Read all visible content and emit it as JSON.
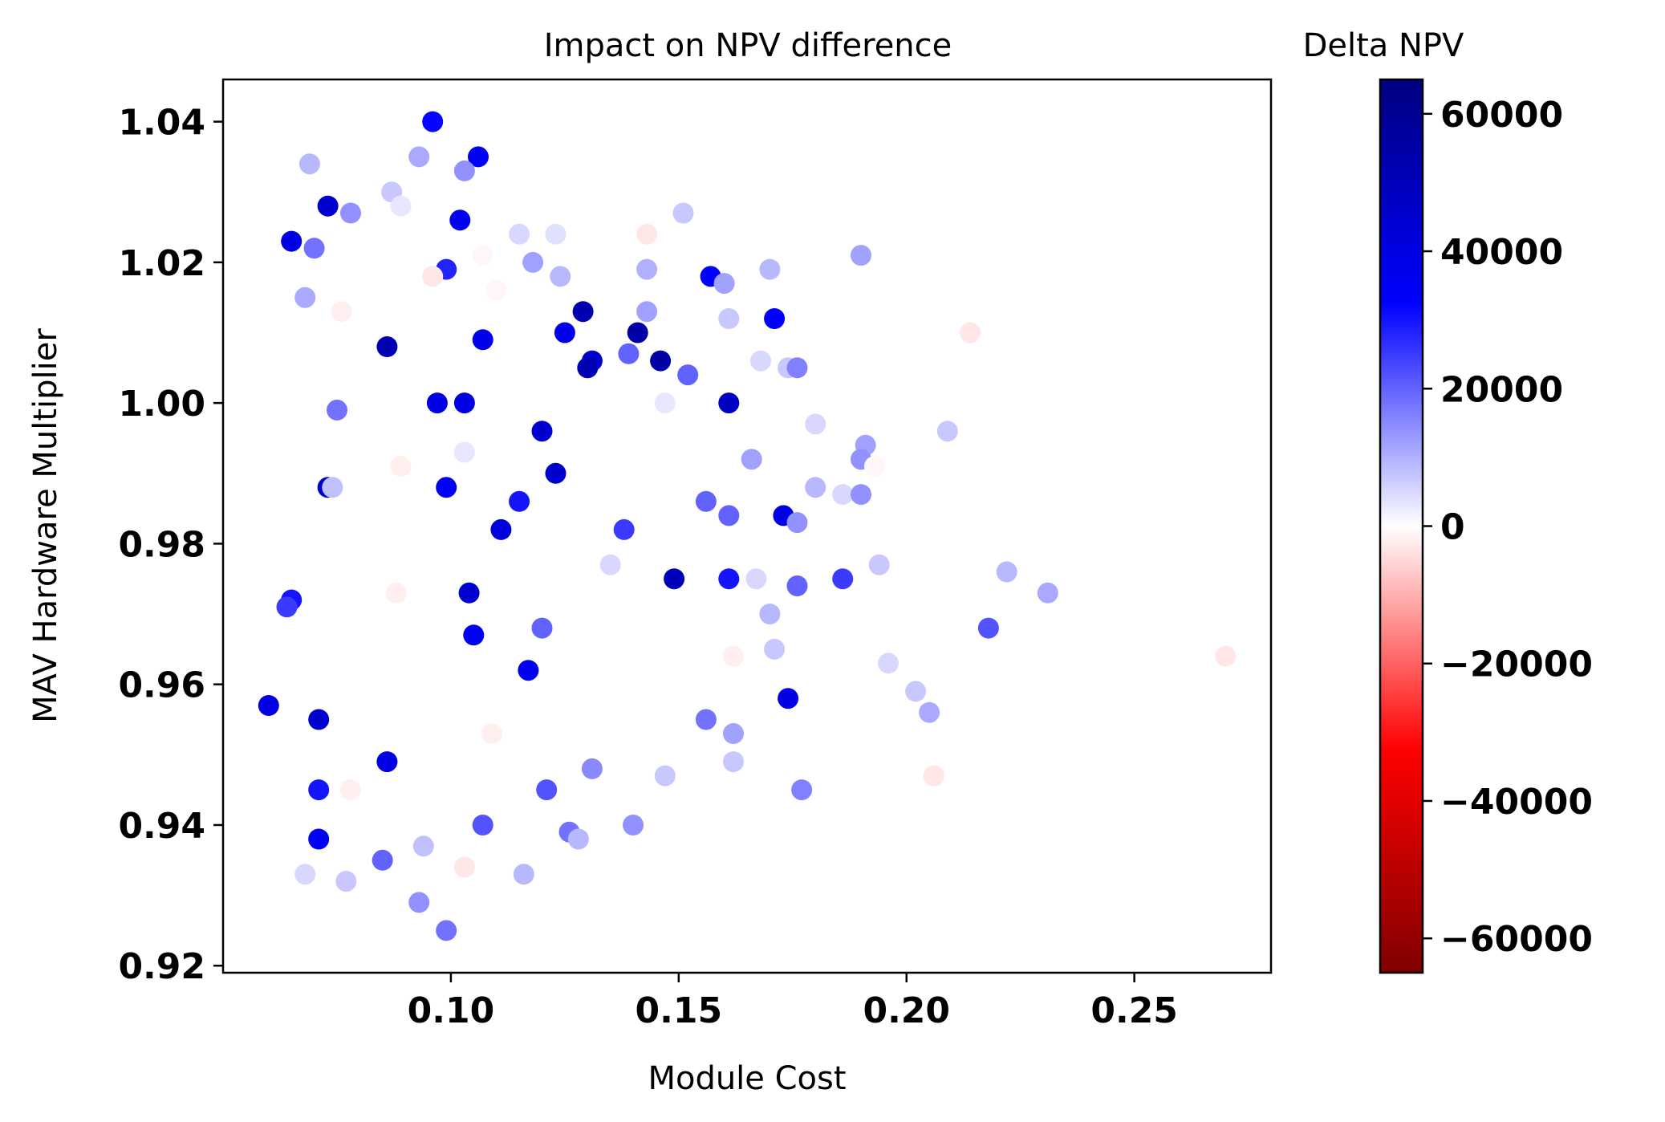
{
  "chart_data": {
    "type": "scatter",
    "title": "Impact on NPV difference",
    "xlabel": "Module Cost",
    "ylabel": "MAV Hardware Multiplier",
    "xlim": [
      0.05,
      0.28
    ],
    "ylim": [
      0.919,
      1.046
    ],
    "xticks": [
      0.1,
      0.15,
      0.2,
      0.25
    ],
    "xtick_labels": [
      "0.10",
      "0.15",
      "0.20",
      "0.25"
    ],
    "yticks": [
      0.92,
      0.94,
      0.96,
      0.98,
      1.0,
      1.02,
      1.04
    ],
    "ytick_labels": [
      "0.92",
      "0.94",
      "0.96",
      "0.98",
      "1.00",
      "1.02",
      "1.04"
    ],
    "grid": false,
    "colorbar": {
      "label": "Delta NPV",
      "colormap": "seismic_r",
      "range": [
        -65000,
        65000
      ],
      "ticks": [
        60000,
        40000,
        20000,
        0,
        -20000,
        -40000,
        -60000
      ],
      "tick_labels": [
        "60000",
        "40000",
        "20000",
        "0",
        "−20000",
        "−40000",
        "−60000"
      ],
      "colors": [
        "#800000",
        "#ff0000",
        "#ffffff",
        "#0000ff",
        "#000080"
      ]
    },
    "points": [
      {
        "x": 0.096,
        "y": 1.04,
        "v": 32000
      },
      {
        "x": 0.069,
        "y": 1.034,
        "v": 9000
      },
      {
        "x": 0.093,
        "y": 1.035,
        "v": 11000
      },
      {
        "x": 0.106,
        "y": 1.035,
        "v": 35000
      },
      {
        "x": 0.103,
        "y": 1.033,
        "v": 14000
      },
      {
        "x": 0.087,
        "y": 1.03,
        "v": 7000
      },
      {
        "x": 0.073,
        "y": 1.028,
        "v": 45000
      },
      {
        "x": 0.078,
        "y": 1.027,
        "v": 14000
      },
      {
        "x": 0.089,
        "y": 1.028,
        "v": 3000
      },
      {
        "x": 0.102,
        "y": 1.026,
        "v": 35000
      },
      {
        "x": 0.151,
        "y": 1.027,
        "v": 7000
      },
      {
        "x": 0.065,
        "y": 1.023,
        "v": 40000
      },
      {
        "x": 0.07,
        "y": 1.022,
        "v": 18000
      },
      {
        "x": 0.143,
        "y": 1.024,
        "v": -3000
      },
      {
        "x": 0.123,
        "y": 1.024,
        "v": 4000
      },
      {
        "x": 0.115,
        "y": 1.024,
        "v": 5000
      },
      {
        "x": 0.107,
        "y": 1.021,
        "v": -1000
      },
      {
        "x": 0.118,
        "y": 1.02,
        "v": 12000
      },
      {
        "x": 0.19,
        "y": 1.021,
        "v": 12000
      },
      {
        "x": 0.099,
        "y": 1.019,
        "v": 28000
      },
      {
        "x": 0.143,
        "y": 1.019,
        "v": 10000
      },
      {
        "x": 0.17,
        "y": 1.019,
        "v": 9000
      },
      {
        "x": 0.157,
        "y": 1.018,
        "v": 33000
      },
      {
        "x": 0.096,
        "y": 1.018,
        "v": -3000
      },
      {
        "x": 0.16,
        "y": 1.017,
        "v": 12000
      },
      {
        "x": 0.11,
        "y": 1.016,
        "v": -1000
      },
      {
        "x": 0.124,
        "y": 1.018,
        "v": 9000
      },
      {
        "x": 0.068,
        "y": 1.015,
        "v": 11000
      },
      {
        "x": 0.076,
        "y": 1.013,
        "v": -2000
      },
      {
        "x": 0.143,
        "y": 1.013,
        "v": 12000
      },
      {
        "x": 0.129,
        "y": 1.013,
        "v": 52000
      },
      {
        "x": 0.171,
        "y": 1.012,
        "v": 33000
      },
      {
        "x": 0.161,
        "y": 1.012,
        "v": 7000
      },
      {
        "x": 0.141,
        "y": 1.01,
        "v": 55000
      },
      {
        "x": 0.125,
        "y": 1.01,
        "v": 38000
      },
      {
        "x": 0.107,
        "y": 1.009,
        "v": 38000
      },
      {
        "x": 0.214,
        "y": 1.01,
        "v": -3000
      },
      {
        "x": 0.086,
        "y": 1.008,
        "v": 52000
      },
      {
        "x": 0.139,
        "y": 1.007,
        "v": 20000
      },
      {
        "x": 0.131,
        "y": 1.006,
        "v": 45000
      },
      {
        "x": 0.13,
        "y": 1.005,
        "v": 52000
      },
      {
        "x": 0.146,
        "y": 1.006,
        "v": 55000
      },
      {
        "x": 0.168,
        "y": 1.006,
        "v": 5000
      },
      {
        "x": 0.174,
        "y": 1.005,
        "v": 7000
      },
      {
        "x": 0.176,
        "y": 1.005,
        "v": 16000
      },
      {
        "x": 0.152,
        "y": 1.004,
        "v": 20000
      },
      {
        "x": 0.161,
        "y": 1.0,
        "v": 48000
      },
      {
        "x": 0.097,
        "y": 1.0,
        "v": 40000
      },
      {
        "x": 0.103,
        "y": 1.0,
        "v": 40000
      },
      {
        "x": 0.075,
        "y": 0.999,
        "v": 18000
      },
      {
        "x": 0.147,
        "y": 1.0,
        "v": 3000
      },
      {
        "x": 0.18,
        "y": 0.997,
        "v": 5000
      },
      {
        "x": 0.209,
        "y": 0.996,
        "v": 7000
      },
      {
        "x": 0.12,
        "y": 0.996,
        "v": 45000
      },
      {
        "x": 0.191,
        "y": 0.994,
        "v": 12000
      },
      {
        "x": 0.19,
        "y": 0.992,
        "v": 14000
      },
      {
        "x": 0.193,
        "y": 0.991,
        "v": -1000
      },
      {
        "x": 0.166,
        "y": 0.992,
        "v": 12000
      },
      {
        "x": 0.18,
        "y": 0.988,
        "v": 9000
      },
      {
        "x": 0.186,
        "y": 0.987,
        "v": 5000
      },
      {
        "x": 0.19,
        "y": 0.987,
        "v": 14000
      },
      {
        "x": 0.123,
        "y": 0.99,
        "v": 45000
      },
      {
        "x": 0.073,
        "y": 0.988,
        "v": 45000
      },
      {
        "x": 0.074,
        "y": 0.988,
        "v": 8000
      },
      {
        "x": 0.099,
        "y": 0.988,
        "v": 35000
      },
      {
        "x": 0.089,
        "y": 0.991,
        "v": -2000
      },
      {
        "x": 0.103,
        "y": 0.993,
        "v": 3000
      },
      {
        "x": 0.115,
        "y": 0.986,
        "v": 30000
      },
      {
        "x": 0.156,
        "y": 0.986,
        "v": 20000
      },
      {
        "x": 0.173,
        "y": 0.984,
        "v": 40000
      },
      {
        "x": 0.176,
        "y": 0.983,
        "v": 14000
      },
      {
        "x": 0.111,
        "y": 0.982,
        "v": 42000
      },
      {
        "x": 0.138,
        "y": 0.982,
        "v": 25000
      },
      {
        "x": 0.161,
        "y": 0.984,
        "v": 20000
      },
      {
        "x": 0.194,
        "y": 0.977,
        "v": 7000
      },
      {
        "x": 0.186,
        "y": 0.975,
        "v": 25000
      },
      {
        "x": 0.222,
        "y": 0.976,
        "v": 9000
      },
      {
        "x": 0.231,
        "y": 0.973,
        "v": 11000
      },
      {
        "x": 0.149,
        "y": 0.975,
        "v": 50000
      },
      {
        "x": 0.161,
        "y": 0.975,
        "v": 30000
      },
      {
        "x": 0.167,
        "y": 0.975,
        "v": 5000
      },
      {
        "x": 0.176,
        "y": 0.974,
        "v": 20000
      },
      {
        "x": 0.135,
        "y": 0.977,
        "v": 5000
      },
      {
        "x": 0.088,
        "y": 0.973,
        "v": -2000
      },
      {
        "x": 0.104,
        "y": 0.973,
        "v": 45000
      },
      {
        "x": 0.065,
        "y": 0.972,
        "v": 30000
      },
      {
        "x": 0.064,
        "y": 0.971,
        "v": 25000
      },
      {
        "x": 0.17,
        "y": 0.97,
        "v": 9000
      },
      {
        "x": 0.218,
        "y": 0.968,
        "v": 22000
      },
      {
        "x": 0.27,
        "y": 0.964,
        "v": -3000
      },
      {
        "x": 0.105,
        "y": 0.967,
        "v": 35000
      },
      {
        "x": 0.12,
        "y": 0.968,
        "v": 20000
      },
      {
        "x": 0.171,
        "y": 0.965,
        "v": 7000
      },
      {
        "x": 0.196,
        "y": 0.963,
        "v": 5000
      },
      {
        "x": 0.162,
        "y": 0.964,
        "v": -2000
      },
      {
        "x": 0.117,
        "y": 0.962,
        "v": 35000
      },
      {
        "x": 0.06,
        "y": 0.957,
        "v": 40000
      },
      {
        "x": 0.174,
        "y": 0.958,
        "v": 40000
      },
      {
        "x": 0.202,
        "y": 0.959,
        "v": 7000
      },
      {
        "x": 0.205,
        "y": 0.956,
        "v": 11000
      },
      {
        "x": 0.071,
        "y": 0.955,
        "v": 45000
      },
      {
        "x": 0.156,
        "y": 0.955,
        "v": 18000
      },
      {
        "x": 0.162,
        "y": 0.953,
        "v": 12000
      },
      {
        "x": 0.109,
        "y": 0.953,
        "v": -2000
      },
      {
        "x": 0.086,
        "y": 0.949,
        "v": 40000
      },
      {
        "x": 0.131,
        "y": 0.948,
        "v": 15000
      },
      {
        "x": 0.147,
        "y": 0.947,
        "v": 7000
      },
      {
        "x": 0.162,
        "y": 0.949,
        "v": 7000
      },
      {
        "x": 0.206,
        "y": 0.947,
        "v": -3000
      },
      {
        "x": 0.071,
        "y": 0.945,
        "v": 30000
      },
      {
        "x": 0.078,
        "y": 0.945,
        "v": -2000
      },
      {
        "x": 0.121,
        "y": 0.945,
        "v": 22000
      },
      {
        "x": 0.177,
        "y": 0.945,
        "v": 16000
      },
      {
        "x": 0.126,
        "y": 0.939,
        "v": 18000
      },
      {
        "x": 0.107,
        "y": 0.94,
        "v": 22000
      },
      {
        "x": 0.071,
        "y": 0.938,
        "v": 35000
      },
      {
        "x": 0.14,
        "y": 0.94,
        "v": 14000
      },
      {
        "x": 0.128,
        "y": 0.938,
        "v": 9000
      },
      {
        "x": 0.094,
        "y": 0.937,
        "v": 8000
      },
      {
        "x": 0.085,
        "y": 0.935,
        "v": 20000
      },
      {
        "x": 0.103,
        "y": 0.934,
        "v": -3000
      },
      {
        "x": 0.077,
        "y": 0.932,
        "v": 7000
      },
      {
        "x": 0.068,
        "y": 0.933,
        "v": 5000
      },
      {
        "x": 0.116,
        "y": 0.933,
        "v": 9000
      },
      {
        "x": 0.093,
        "y": 0.929,
        "v": 14000
      },
      {
        "x": 0.099,
        "y": 0.925,
        "v": 18000
      }
    ]
  }
}
